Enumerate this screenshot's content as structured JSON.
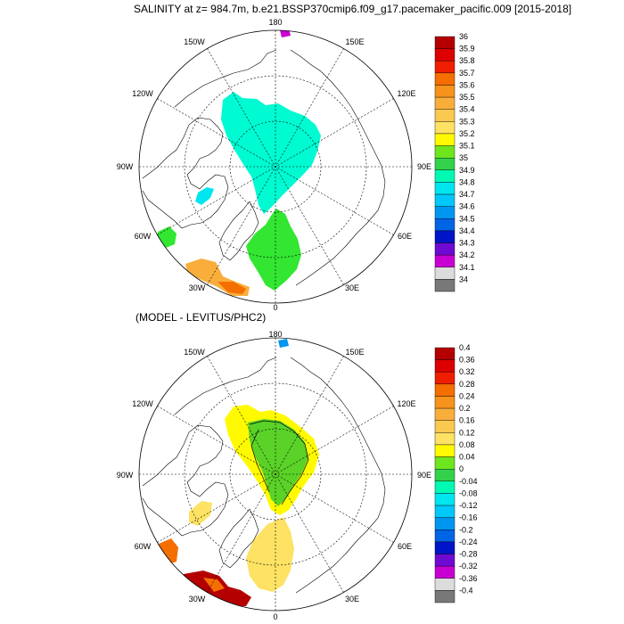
{
  "titles": {
    "main": "SALINITY at z= 984.7m, b.e21.BSSP370cmip6.f09_g17.pacemaker_pacific.009 [2015-2018]",
    "sub": "(MODEL - LEVITUS/PHC2)"
  },
  "lon_labels": {
    "deg180": "180",
    "w150": "150W",
    "e150": "150E",
    "w120": "120W",
    "e120": "120E",
    "w90": "90W",
    "e90": "90E",
    "w60": "60W",
    "e60": "60E",
    "w30": "30W",
    "e30": "30E",
    "deg0": "0"
  },
  "colorbar_top": {
    "labels": [
      "36",
      "35.9",
      "35.8",
      "35.7",
      "35.6",
      "35.5",
      "35.4",
      "35.3",
      "35.2",
      "35.1",
      "35",
      "34.9",
      "34.8",
      "34.7",
      "34.6",
      "34.5",
      "34.4",
      "34.3",
      "34.2",
      "34.1",
      "34"
    ]
  },
  "colorbar_bottom": {
    "labels": [
      "0.4",
      "0.36",
      "0.32",
      "0.28",
      "0.24",
      "0.2",
      "0.16",
      "0.12",
      "0.08",
      "0.04",
      "0",
      "-0.04",
      "-0.08",
      "-0.12",
      "-0.16",
      "-0.2",
      "-0.24",
      "-0.28",
      "-0.32",
      "-0.36",
      "-0.4"
    ]
  },
  "palette": [
    "#b40000",
    "#dc0000",
    "#f01e00",
    "#f56e00",
    "#f7921c",
    "#f9ae3c",
    "#fbc850",
    "#fde264",
    "#fffa00",
    "#6ee61e",
    "#32d24a",
    "#00fab4",
    "#00e6f0",
    "#00c8fa",
    "#0096f0",
    "#0064e6",
    "#0014c8",
    "#6e0ad2",
    "#c800d2",
    "#dcdcdc",
    "#787878"
  ],
  "colors_map": {
    "top_arctic": "#00fad2",
    "top_atlantic": "#32e632",
    "top_labrador": "#00e6f0",
    "bot_central": "#5ad228",
    "bot_edge": "#fffa00",
    "bot_atlantic": "#fde264",
    "bot_south": "#b40000"
  }
}
